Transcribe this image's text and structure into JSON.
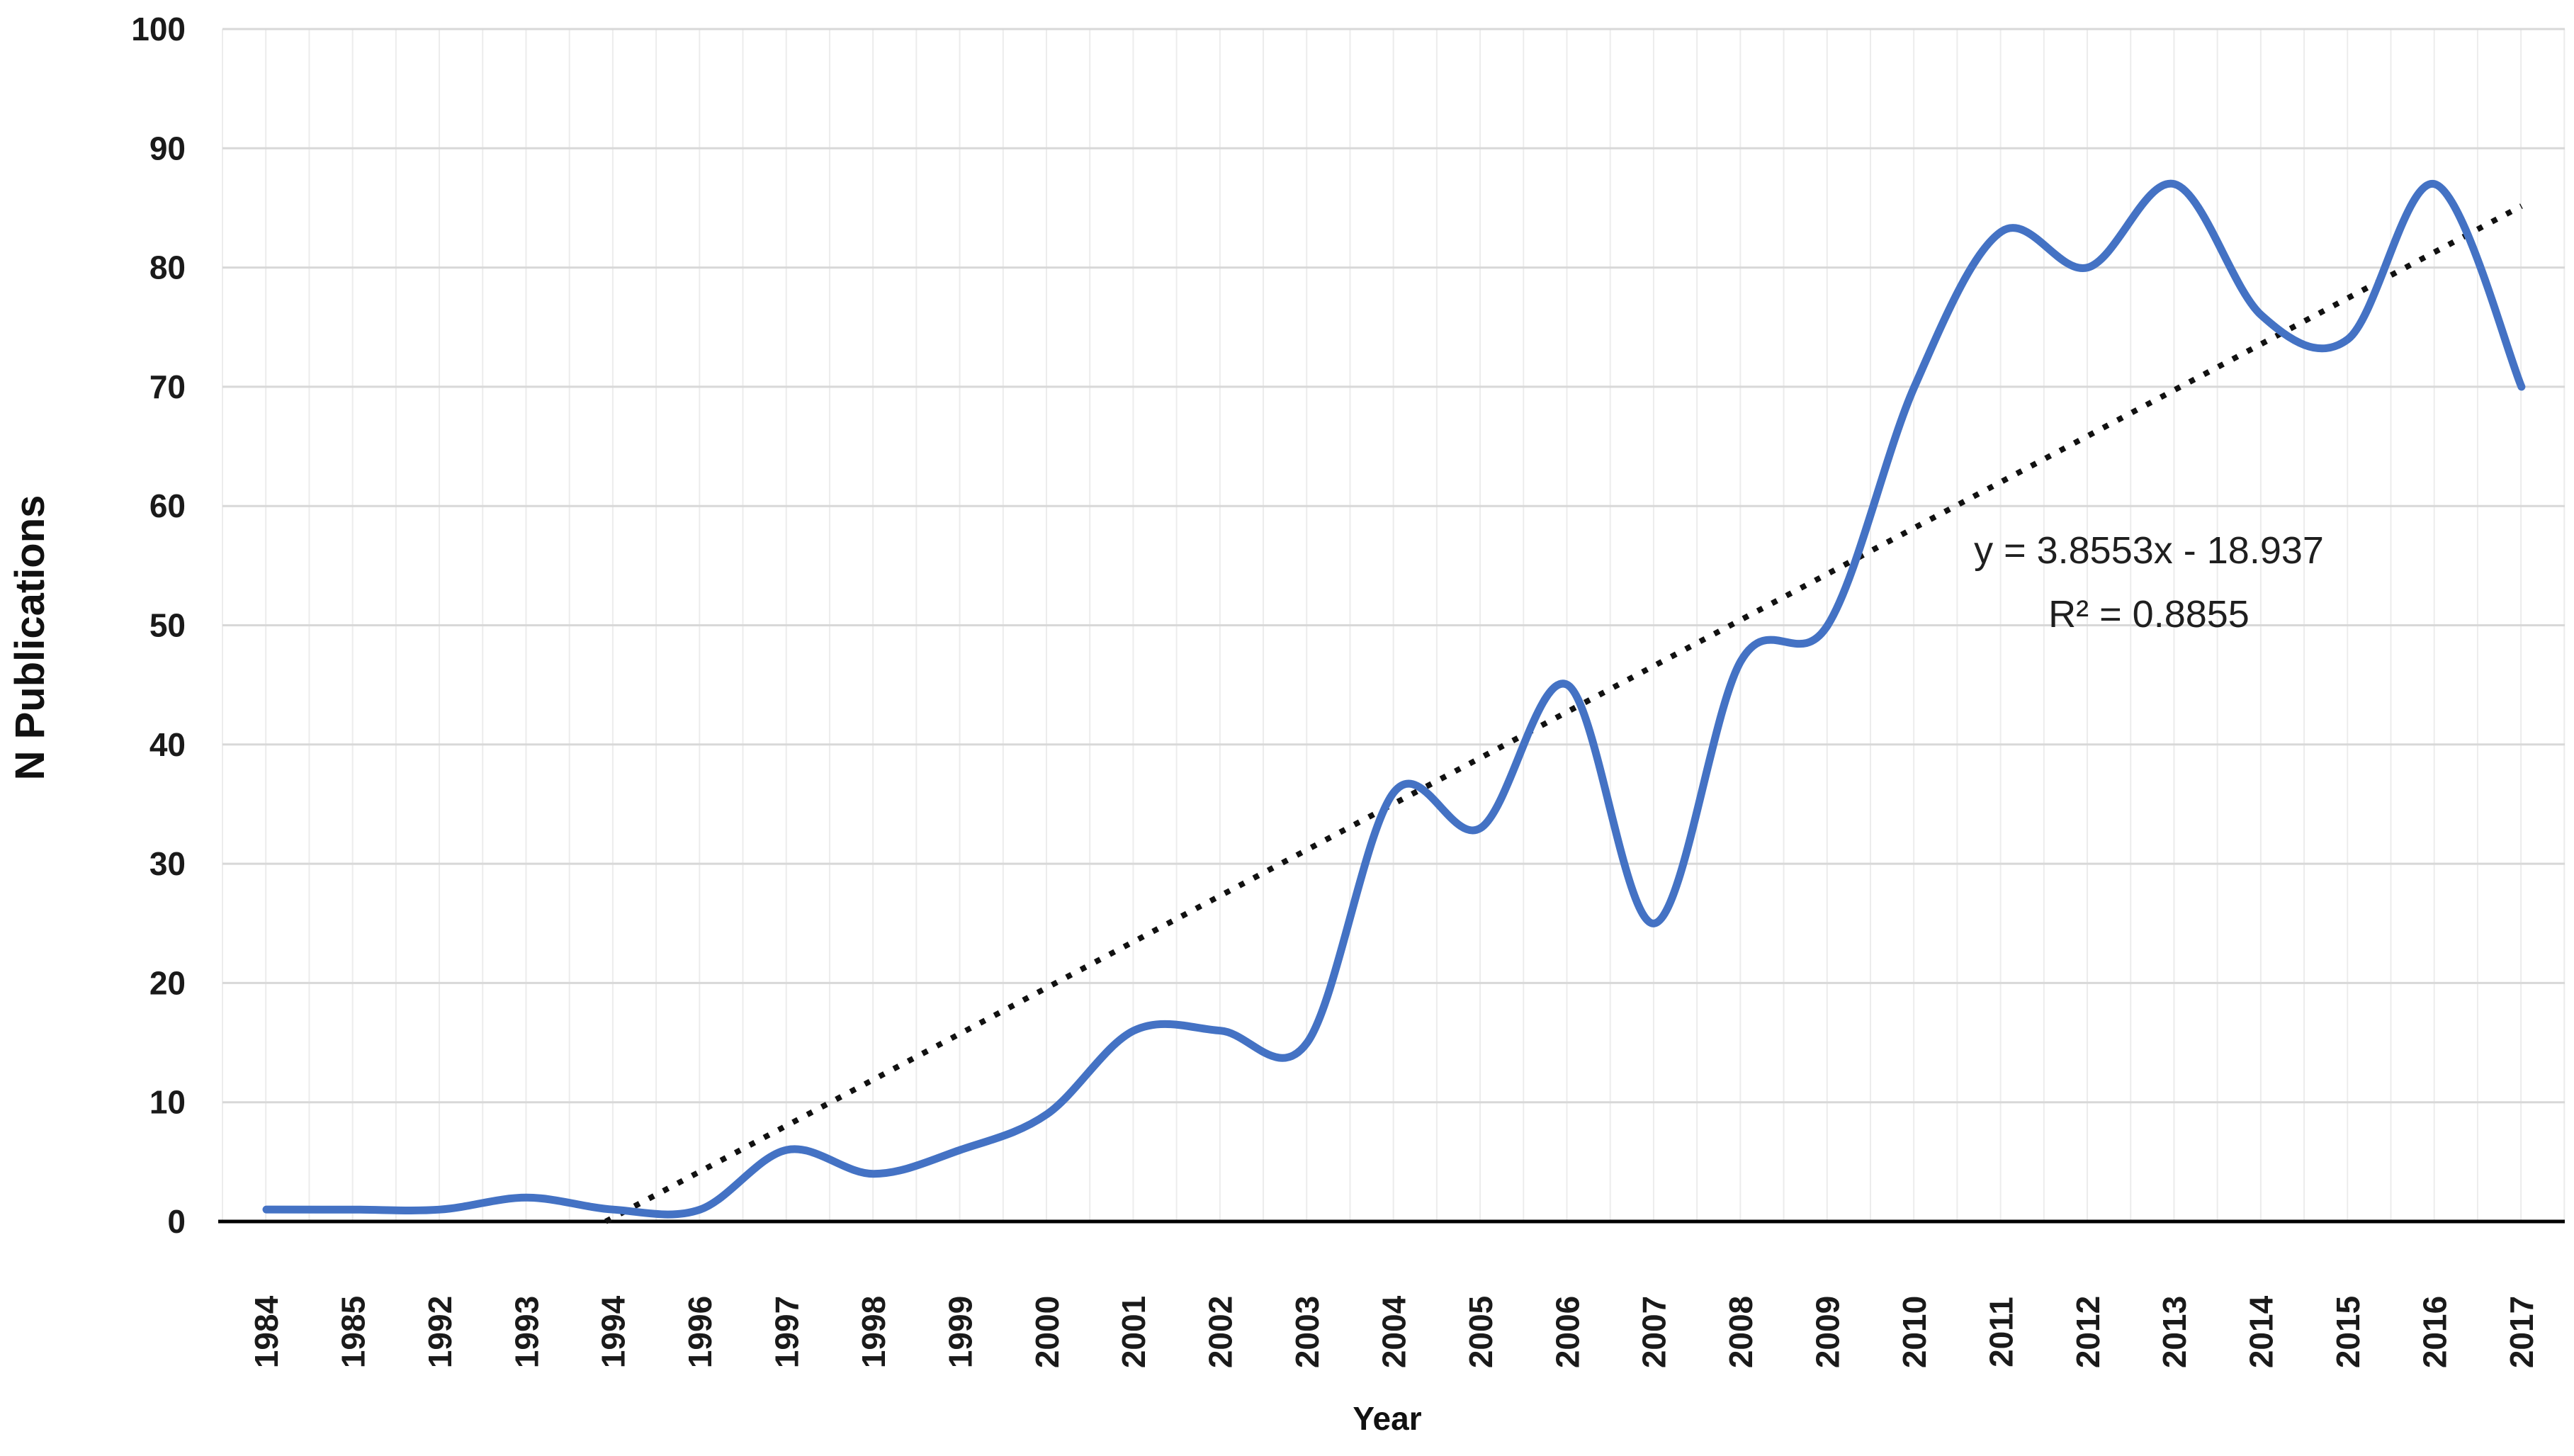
{
  "chart_data": {
    "type": "line",
    "title": "",
    "ylabel": "N Publications",
    "xlabel": "Year",
    "categories": [
      "1984",
      "1985",
      "1992",
      "1993",
      "1994",
      "1996",
      "1997",
      "1998",
      "1999",
      "2000",
      "2001",
      "2002",
      "2003",
      "2004",
      "2005",
      "2006",
      "2007",
      "2008",
      "2009",
      "2010",
      "2011",
      "2012",
      "2013",
      "2014",
      "2015",
      "2016",
      "2017"
    ],
    "series": [
      {
        "name": "N Publications",
        "values": [
          1,
          1,
          1,
          2,
          1,
          1,
          6,
          4,
          6,
          9,
          16,
          16,
          15,
          36,
          33,
          45,
          25,
          47,
          50,
          70,
          83,
          80,
          87,
          76,
          74,
          87,
          70
        ],
        "color": "#4472C4",
        "style": "smooth"
      }
    ],
    "ylim": [
      0,
      100
    ],
    "yticks": [
      0,
      10,
      20,
      30,
      40,
      50,
      60,
      70,
      80,
      90,
      100
    ],
    "grid": true,
    "legend": false,
    "trendline": {
      "slope": 3.8553,
      "intercept": -18.937,
      "color": "#111111",
      "style": "dotted",
      "label_line1": "y = 3.8553x - 18.937",
      "label_line2": "R² = 0.8855"
    }
  }
}
